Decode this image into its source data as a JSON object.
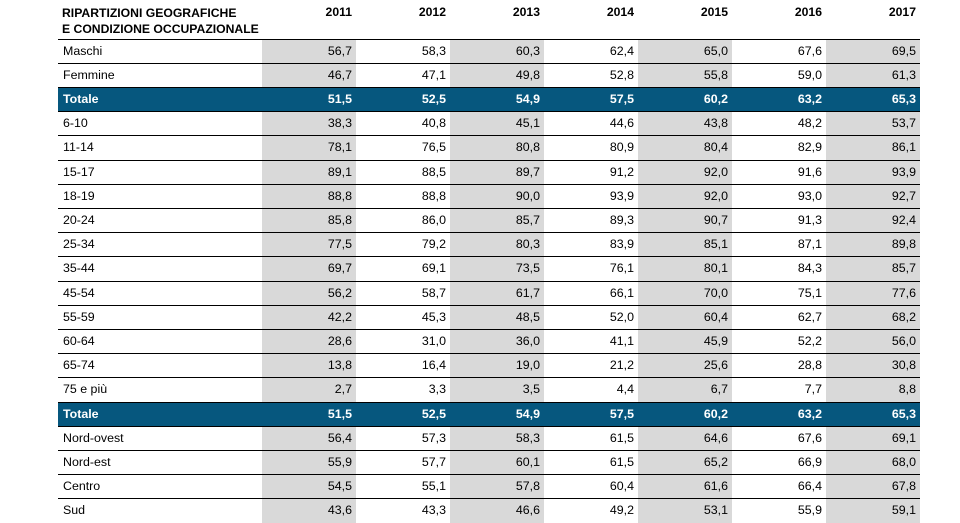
{
  "colors": {
    "total_bg": "#06577e",
    "shade": "#d9d9d9",
    "total_text": "#ffffff"
  },
  "header": {
    "label_line1": "RIPARTIZIONI GEOGRAFICHE",
    "label_line2": "E CONDIZIONE OCCUPAZIONALE",
    "years": [
      "2011",
      "2012",
      "2013",
      "2014",
      "2015",
      "2016",
      "2017"
    ]
  },
  "rows": [
    {
      "label": "Maschi",
      "total": false,
      "values": [
        "56,7",
        "58,3",
        "60,3",
        "62,4",
        "65,0",
        "67,6",
        "69,5"
      ]
    },
    {
      "label": "Femmine",
      "total": false,
      "values": [
        "46,7",
        "47,1",
        "49,8",
        "52,8",
        "55,8",
        "59,0",
        "61,3"
      ]
    },
    {
      "label": "Totale",
      "total": true,
      "values": [
        "51,5",
        "52,5",
        "54,9",
        "57,5",
        "60,2",
        "63,2",
        "65,3"
      ]
    },
    {
      "label": "6-10",
      "total": false,
      "values": [
        "38,3",
        "40,8",
        "45,1",
        "44,6",
        "43,8",
        "48,2",
        "53,7"
      ]
    },
    {
      "label": "11-14",
      "total": false,
      "values": [
        "78,1",
        "76,5",
        "80,8",
        "80,9",
        "80,4",
        "82,9",
        "86,1"
      ]
    },
    {
      "label": "15-17",
      "total": false,
      "values": [
        "89,1",
        "88,5",
        "89,7",
        "91,2",
        "92,0",
        "91,6",
        "93,9"
      ]
    },
    {
      "label": "18-19",
      "total": false,
      "values": [
        "88,8",
        "88,8",
        "90,0",
        "93,9",
        "92,0",
        "93,0",
        "92,7"
      ]
    },
    {
      "label": "20-24",
      "total": false,
      "values": [
        "85,8",
        "86,0",
        "85,7",
        "89,3",
        "90,7",
        "91,3",
        "92,4"
      ]
    },
    {
      "label": "25-34",
      "total": false,
      "values": [
        "77,5",
        "79,2",
        "80,3",
        "83,9",
        "85,1",
        "87,1",
        "89,8"
      ]
    },
    {
      "label": "35-44",
      "total": false,
      "values": [
        "69,7",
        "69,1",
        "73,5",
        "76,1",
        "80,1",
        "84,3",
        "85,7"
      ]
    },
    {
      "label": "45-54",
      "total": false,
      "values": [
        "56,2",
        "58,7",
        "61,7",
        "66,1",
        "70,0",
        "75,1",
        "77,6"
      ]
    },
    {
      "label": "55-59",
      "total": false,
      "values": [
        "42,2",
        "45,3",
        "48,5",
        "52,0",
        "60,4",
        "62,7",
        "68,2"
      ]
    },
    {
      "label": "60-64",
      "total": false,
      "values": [
        "28,6",
        "31,0",
        "36,0",
        "41,1",
        "45,9",
        "52,2",
        "56,0"
      ]
    },
    {
      "label": "65-74",
      "total": false,
      "values": [
        "13,8",
        "16,4",
        "19,0",
        "21,2",
        "25,6",
        "28,8",
        "30,8"
      ]
    },
    {
      "label": "75 e più",
      "total": false,
      "values": [
        "2,7",
        "3,3",
        "3,5",
        "4,4",
        "6,7",
        "7,7",
        "8,8"
      ]
    },
    {
      "label": "Totale",
      "total": true,
      "values": [
        "51,5",
        "52,5",
        "54,9",
        "57,5",
        "60,2",
        "63,2",
        "65,3"
      ]
    },
    {
      "label": "Nord-ovest",
      "total": false,
      "values": [
        "56,4",
        "57,3",
        "58,3",
        "61,5",
        "64,6",
        "67,6",
        "69,1"
      ]
    },
    {
      "label": "Nord-est",
      "total": false,
      "values": [
        "55,9",
        "57,7",
        "60,1",
        "61,5",
        "65,2",
        "66,9",
        "68,0"
      ]
    },
    {
      "label": "Centro",
      "total": false,
      "values": [
        "54,5",
        "55,1",
        "57,8",
        "60,4",
        "61,6",
        "66,4",
        "67,8"
      ]
    },
    {
      "label": "Sud",
      "total": false,
      "values": [
        "43,6",
        "43,3",
        "46,6",
        "49,2",
        "53,1",
        "55,9",
        "59,1"
      ]
    }
  ]
}
